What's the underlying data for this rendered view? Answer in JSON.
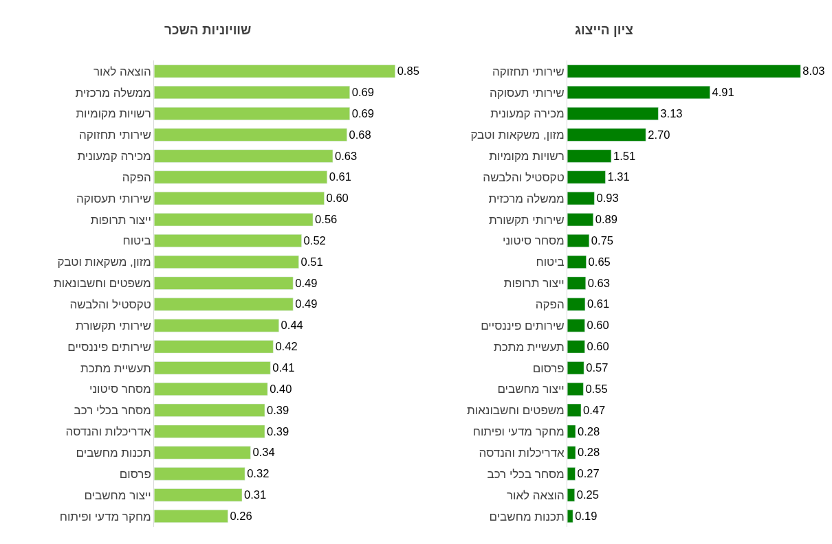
{
  "chart_data": [
    {
      "type": "bar",
      "orientation": "horizontal",
      "title": "ציון הייצוג",
      "color": "#008000",
      "tick_labels": "y",
      "categories": [
        "שירותי תחזוקה",
        "שירותי תעסוקה",
        "מכירה קמעונית",
        "מזון, משקאות וטבק",
        "רשויות מקומיות",
        "טקסטיל והלבשה",
        "ממשלה מרכזית",
        "שירותי תקשורת",
        "מסחר סיטוני",
        "ביטוח",
        "ייצור תרופות",
        "הפקה",
        "שירותים פיננסיים",
        "תעשיית מתכת",
        "פרסום",
        "ייצור מחשבים",
        "משפטים וחשבונאות",
        "מחקר מדעי ופיתוח",
        "אדריכלות והנדסה",
        "מסחר בכלי רכב",
        "הוצאה לאור",
        "תכנות מחשבים"
      ],
      "values": [
        8.03,
        4.91,
        3.13,
        2.7,
        1.51,
        1.31,
        0.93,
        0.89,
        0.75,
        0.65,
        0.63,
        0.61,
        0.6,
        0.6,
        0.57,
        0.55,
        0.47,
        0.28,
        0.28,
        0.27,
        0.25,
        0.19
      ],
      "value_labels": [
        "8.03",
        "4.91",
        "3.13",
        "2.70",
        "1.51",
        "1.31",
        "0.93",
        "0.89",
        "0.75",
        "0.65",
        "0.63",
        "0.61",
        "0.60",
        "0.60",
        "0.57",
        "0.55",
        "0.47",
        "0.28",
        "0.28",
        "0.27",
        "0.25",
        "0.19"
      ]
    },
    {
      "type": "bar",
      "orientation": "horizontal",
      "title": "שוויוניות השכר",
      "color": "#92d050",
      "tick_labels": "y",
      "categories": [
        "הוצאה לאור",
        "ממשלה מרכזית",
        "רשויות מקומיות",
        "שירותי תחזוקה",
        "מכירה קמעונית",
        "הפקה",
        "שירותי תעסוקה",
        "ייצור תרופות",
        "ביטוח",
        "מזון, משקאות וטבק",
        "משפטים וחשבונאות",
        "טקסטיל והלבשה",
        "שירותי תקשורת",
        "שירותים פיננסיים",
        "תעשיית מתכת",
        "מסחר סיטוני",
        "מסחר בכלי רכב",
        "אדריכלות והנדסה",
        "תכנות מחשבים",
        "פרסום",
        "ייצור מחשבים",
        "מחקר מדעי ופיתוח"
      ],
      "values": [
        0.85,
        0.69,
        0.69,
        0.68,
        0.63,
        0.61,
        0.6,
        0.56,
        0.52,
        0.51,
        0.49,
        0.49,
        0.44,
        0.42,
        0.41,
        0.4,
        0.39,
        0.39,
        0.34,
        0.32,
        0.31,
        0.26
      ],
      "value_labels": [
        "0.85",
        "0.69",
        "0.69",
        "0.68",
        "0.63",
        "0.61",
        "0.60",
        "0.56",
        "0.52",
        "0.51",
        "0.49",
        "0.49",
        "0.44",
        "0.42",
        "0.41",
        "0.40",
        "0.39",
        "0.39",
        "0.34",
        "0.32",
        "0.31",
        "0.26"
      ]
    }
  ]
}
